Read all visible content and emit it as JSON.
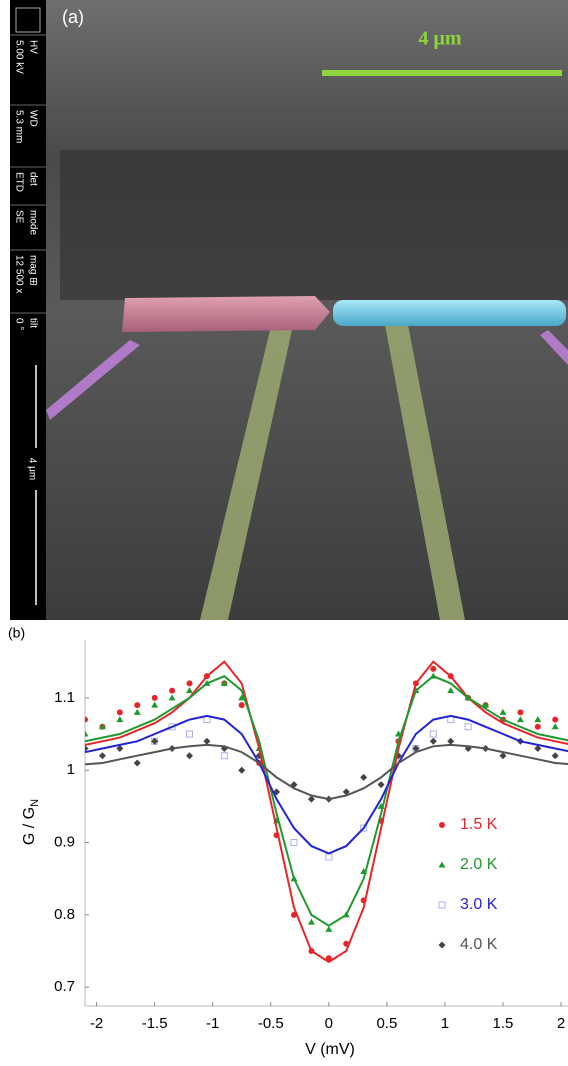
{
  "panel_a": {
    "label": "(a)",
    "scale_bar_label": "4 μm",
    "info_bar": [
      {
        "name": "HV",
        "value": "5.00 kV"
      },
      {
        "name": "WD",
        "value": "5.3 mm"
      },
      {
        "name": "det",
        "value": "ETD"
      },
      {
        "name": "mode",
        "value": "SE"
      },
      {
        "name": "mag ⊞",
        "value": "12 500 x"
      },
      {
        "name": "tilt",
        "value": "0 °"
      }
    ],
    "info_scale_label": "4 μm"
  },
  "chart_data": {
    "type": "scatter",
    "panel_label": "(b)",
    "xlabel": "V (mV)",
    "ylabel": {
      "text": "G / G",
      "subscript": "N"
    },
    "xlim": [
      -2.1,
      2.06
    ],
    "ylim": [
      0.674,
      1.18
    ],
    "xticks": [
      -2,
      -1.5,
      -1,
      -0.5,
      0,
      0.5,
      1,
      1.5,
      2
    ],
    "yticks": [
      0.7,
      0.8,
      0.9,
      1,
      1.1
    ],
    "legend_position": "right",
    "x": [
      -2.1,
      -1.95,
      -1.8,
      -1.65,
      -1.5,
      -1.35,
      -1.2,
      -1.05,
      -0.9,
      -0.75,
      -0.6,
      -0.45,
      -0.3,
      -0.15,
      0,
      0.15,
      0.3,
      0.45,
      0.6,
      0.75,
      0.9,
      1.05,
      1.2,
      1.35,
      1.5,
      1.65,
      1.8,
      1.95,
      2.1
    ],
    "series": [
      {
        "name": "1.5 K",
        "color": "#e8262a",
        "marker": "circle",
        "marker_color": "#e8262a",
        "values": [
          1.07,
          1.06,
          1.08,
          1.09,
          1.1,
          1.11,
          1.12,
          1.13,
          1.12,
          1.09,
          1.01,
          0.91,
          0.8,
          0.75,
          0.74,
          0.76,
          0.82,
          0.93,
          1.04,
          1.12,
          1.14,
          1.13,
          1.1,
          1.09,
          1.07,
          1.08,
          1.06,
          1.07,
          1.05
        ],
        "fit": [
          1.035,
          1.04,
          1.045,
          1.055,
          1.065,
          1.08,
          1.1,
          1.13,
          1.15,
          1.12,
          1.03,
          0.92,
          0.81,
          0.75,
          0.735,
          0.75,
          0.81,
          0.92,
          1.03,
          1.12,
          1.15,
          1.13,
          1.1,
          1.08,
          1.065,
          1.055,
          1.045,
          1.04,
          1.035
        ]
      },
      {
        "name": "2.0 K",
        "color": "#1f9a2e",
        "marker": "triangle",
        "marker_color": "#1f9a2e",
        "values": [
          1.05,
          1.06,
          1.07,
          1.08,
          1.09,
          1.1,
          1.11,
          1.12,
          1.12,
          1.1,
          1.03,
          0.93,
          0.85,
          0.79,
          0.78,
          0.8,
          0.86,
          0.95,
          1.05,
          1.11,
          1.13,
          1.11,
          1.1,
          1.09,
          1.08,
          1.07,
          1.07,
          1.06,
          1.05
        ],
        "fit": [
          1.04,
          1.045,
          1.05,
          1.06,
          1.07,
          1.085,
          1.1,
          1.12,
          1.13,
          1.11,
          1.04,
          0.94,
          0.85,
          0.8,
          0.785,
          0.8,
          0.85,
          0.94,
          1.04,
          1.11,
          1.13,
          1.12,
          1.1,
          1.085,
          1.07,
          1.06,
          1.05,
          1.045,
          1.04
        ]
      },
      {
        "name": "3.0 K",
        "color": "#2323d6",
        "marker": "square",
        "marker_color": "#a8b0e8",
        "values": [
          null,
          null,
          null,
          null,
          1.04,
          1.06,
          1.05,
          1.07,
          1.02,
          null,
          null,
          null,
          0.9,
          null,
          0.88,
          null,
          0.92,
          null,
          null,
          1.03,
          1.05,
          1.07,
          1.06,
          null,
          null,
          null,
          null,
          null,
          null
        ],
        "fit": [
          1.025,
          1.03,
          1.035,
          1.04,
          1.05,
          1.06,
          1.07,
          1.075,
          1.07,
          1.05,
          1.01,
          0.96,
          0.92,
          0.895,
          0.885,
          0.895,
          0.92,
          0.96,
          1.01,
          1.05,
          1.07,
          1.075,
          1.07,
          1.06,
          1.05,
          1.04,
          1.035,
          1.03,
          1.025
        ]
      },
      {
        "name": "4.0 K",
        "color": "#555555",
        "marker": "diamond",
        "marker_color": "#444444",
        "values": [
          1.03,
          1.02,
          1.03,
          1.01,
          1.04,
          1.03,
          1.02,
          1.04,
          1.03,
          1.0,
          1.02,
          0.97,
          0.98,
          0.96,
          0.96,
          0.97,
          0.99,
          0.98,
          1.02,
          1.03,
          1.04,
          1.04,
          1.03,
          1.03,
          1.02,
          1.04,
          1.03,
          1.02,
          1.04
        ],
        "fit": [
          1.008,
          1.01,
          1.015,
          1.02,
          1.025,
          1.03,
          1.033,
          1.035,
          1.033,
          1.025,
          1.01,
          0.99,
          0.975,
          0.965,
          0.96,
          0.965,
          0.975,
          0.99,
          1.01,
          1.025,
          1.033,
          1.035,
          1.033,
          1.03,
          1.025,
          1.02,
          1.015,
          1.01,
          1.008
        ]
      }
    ]
  }
}
